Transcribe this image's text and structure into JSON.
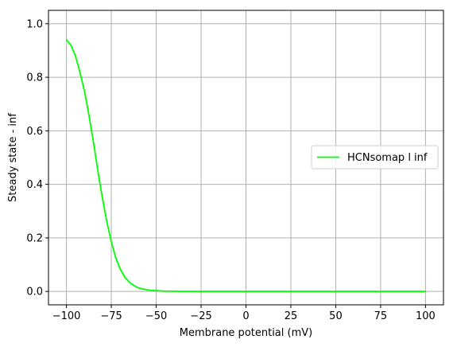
{
  "chart_data": {
    "type": "line",
    "title": "",
    "xlabel": "Membrane potential (mV)",
    "ylabel": "Steady state - inf",
    "xlim": [
      -110,
      110
    ],
    "ylim": [
      -0.05,
      1.05
    ],
    "xticks": [
      -100,
      -75,
      -50,
      -25,
      0,
      25,
      50,
      75,
      100
    ],
    "xtick_labels": [
      "−100",
      "−75",
      "−50",
      "−25",
      "0",
      "25",
      "50",
      "75",
      "100"
    ],
    "yticks": [
      0.0,
      0.2,
      0.4,
      0.6,
      0.8,
      1.0
    ],
    "ytick_labels": [
      "0.0",
      "0.2",
      "0.4",
      "0.6",
      "0.8",
      "1.0"
    ],
    "grid": true,
    "legend_position": "center-right",
    "series": [
      {
        "name": "HCNsomap l inf",
        "color": "#00ff00",
        "x": [
          -100,
          -97.5,
          -95,
          -92.5,
          -90,
          -87.5,
          -85,
          -82.5,
          -80,
          -77.5,
          -75,
          -72.5,
          -70,
          -67.5,
          -65,
          -62.5,
          -60,
          -57.5,
          -55,
          -52.5,
          -50,
          -47.5,
          -45,
          -42.5,
          -40,
          -35,
          -30,
          -25,
          -20,
          -10,
          0,
          25,
          50,
          75,
          100
        ],
        "y": [
          0.94,
          0.92,
          0.88,
          0.82,
          0.75,
          0.66,
          0.56,
          0.45,
          0.35,
          0.26,
          0.185,
          0.125,
          0.083,
          0.054,
          0.035,
          0.022,
          0.014,
          0.009,
          0.006,
          0.004,
          0.003,
          0.002,
          0.001,
          0.001,
          0.0005,
          0.0002,
          0.0001,
          0.0,
          0.0,
          0.0,
          0.0,
          0.0,
          0.0,
          0.0,
          0.0
        ]
      }
    ]
  }
}
